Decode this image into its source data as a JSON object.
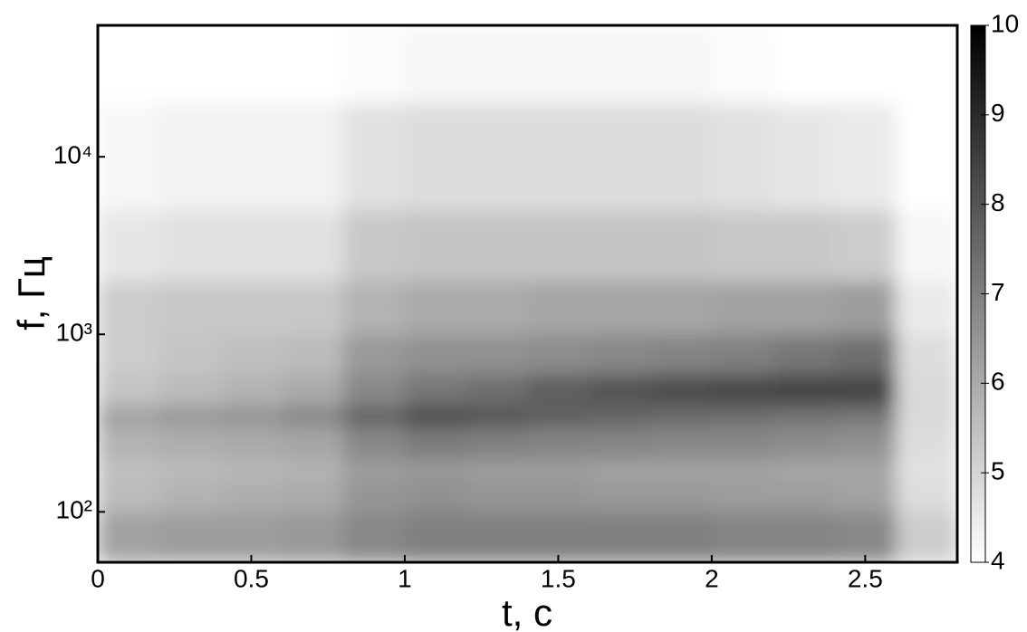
{
  "chart_data": {
    "type": "heatmap",
    "xlabel": "t, c",
    "ylabel": "f, Гц",
    "xlim": [
      0,
      2.8
    ],
    "xticks": [
      0,
      0.5,
      1,
      1.5,
      2,
      2.5
    ],
    "ylim": [
      52,
      55000
    ],
    "yscale": "log",
    "yticks": [
      {
        "value": 100,
        "label": "10²"
      },
      {
        "value": 1000,
        "label": "10³"
      },
      {
        "value": 10000,
        "label": "10⁴"
      }
    ],
    "xbins": [
      0,
      0.2,
      0.4,
      0.6,
      0.8,
      1.0,
      1.2,
      1.4,
      1.6,
      1.8,
      2.0,
      2.2,
      2.4,
      2.6,
      2.8
    ],
    "ybins": [
      52,
      100,
      150,
      200,
      300,
      400,
      600,
      1000,
      2000,
      5000,
      20000,
      55000
    ],
    "z": [
      [
        6.2,
        6.3,
        6.3,
        6.4,
        6.8,
        7,
        7,
        7,
        7,
        7,
        6.9,
        6.9,
        6.8,
        5.2
      ],
      [
        5.6,
        5.8,
        5.9,
        6,
        6.5,
        6.6,
        6.5,
        6.5,
        6.4,
        6.4,
        6.3,
        6.3,
        6.2,
        4.8
      ],
      [
        5.5,
        5.6,
        5.7,
        5.8,
        6.3,
        6.4,
        6.3,
        6.3,
        6.2,
        6.2,
        6.2,
        6.1,
        6.1,
        4.7
      ],
      [
        5.8,
        5.9,
        6,
        6.1,
        6.8,
        7.1,
        7,
        6.9,
        6.9,
        6.8,
        6.8,
        6.7,
        6.6,
        4.8
      ],
      [
        6.2,
        6.4,
        6.5,
        6.8,
        7.6,
        8.2,
        8,
        7.8,
        7.6,
        7.5,
        7.4,
        7.3,
        7.2,
        4.9
      ],
      [
        5.4,
        5.6,
        5.8,
        6,
        6.8,
        7.2,
        7.4,
        7.8,
        8,
        8.2,
        8.3,
        8.4,
        8.4,
        4.9
      ],
      [
        5.2,
        5.4,
        5.5,
        5.6,
        6.4,
        6.6,
        6.6,
        6.7,
        6.8,
        6.9,
        7,
        7.2,
        7.4,
        4.8
      ],
      [
        5.2,
        5.3,
        5.3,
        5.3,
        5.8,
        6,
        6,
        6.1,
        6.1,
        6.1,
        6.2,
        6.2,
        6.3,
        4.5
      ],
      [
        4.6,
        4.7,
        4.7,
        4.7,
        5.3,
        5.4,
        5.4,
        5.4,
        5.4,
        5.4,
        5.3,
        5.3,
        5.2,
        4.2
      ],
      [
        4.2,
        4.3,
        4.3,
        4.3,
        4.7,
        4.8,
        4.8,
        4.8,
        4.8,
        4.8,
        4.7,
        4.6,
        4.5,
        4.0
      ],
      [
        4,
        4,
        4,
        4,
        4.1,
        4.2,
        4.2,
        4.2,
        4.2,
        4.2,
        4.1,
        4,
        4,
        4
      ]
    ],
    "clim": [
      4,
      10
    ],
    "cticks": [
      4,
      5,
      6,
      7,
      8,
      9,
      10
    ],
    "colormap": [
      "#ffffff",
      "#000000"
    ]
  }
}
